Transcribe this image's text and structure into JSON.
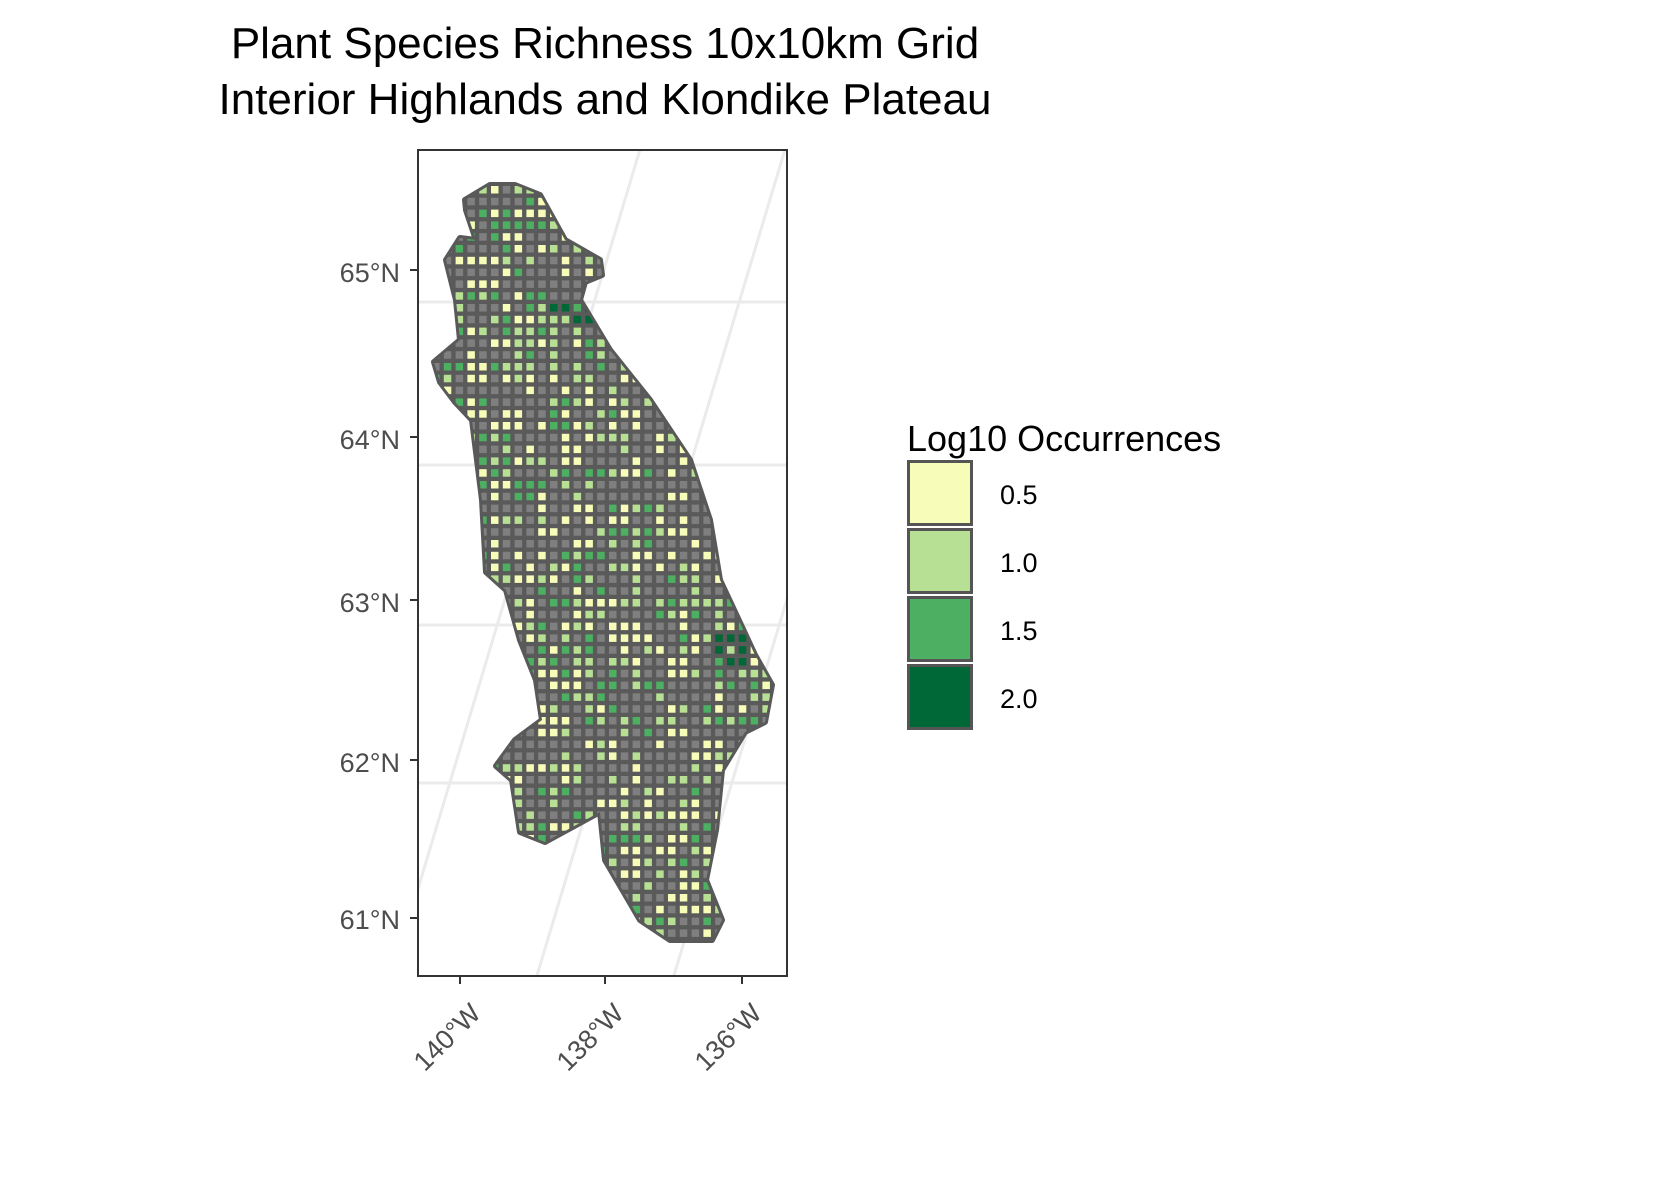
{
  "title_line1": "Plant Species Richness 10x10km Grid",
  "title_line2": "Interior Highlands and Klondike Plateau",
  "y_axis_labels": [
    "65°N",
    "64°N",
    "63°N",
    "62°N",
    "61°N"
  ],
  "x_axis_labels": [
    "140°W",
    "138°W",
    "136°W"
  ],
  "legend": {
    "title": "Log10 Occurrences",
    "items": [
      {
        "label": "0.5",
        "color": "#f7fcb9"
      },
      {
        "label": "1.0",
        "color": "#b8e094"
      },
      {
        "label": "1.5",
        "color": "#4daf62"
      },
      {
        "label": "2.0",
        "color": "#006837"
      }
    ]
  },
  "colors": {
    "no_data": "#7f7f7f",
    "border": "#595959",
    "graticule": "#ebebeb"
  }
}
